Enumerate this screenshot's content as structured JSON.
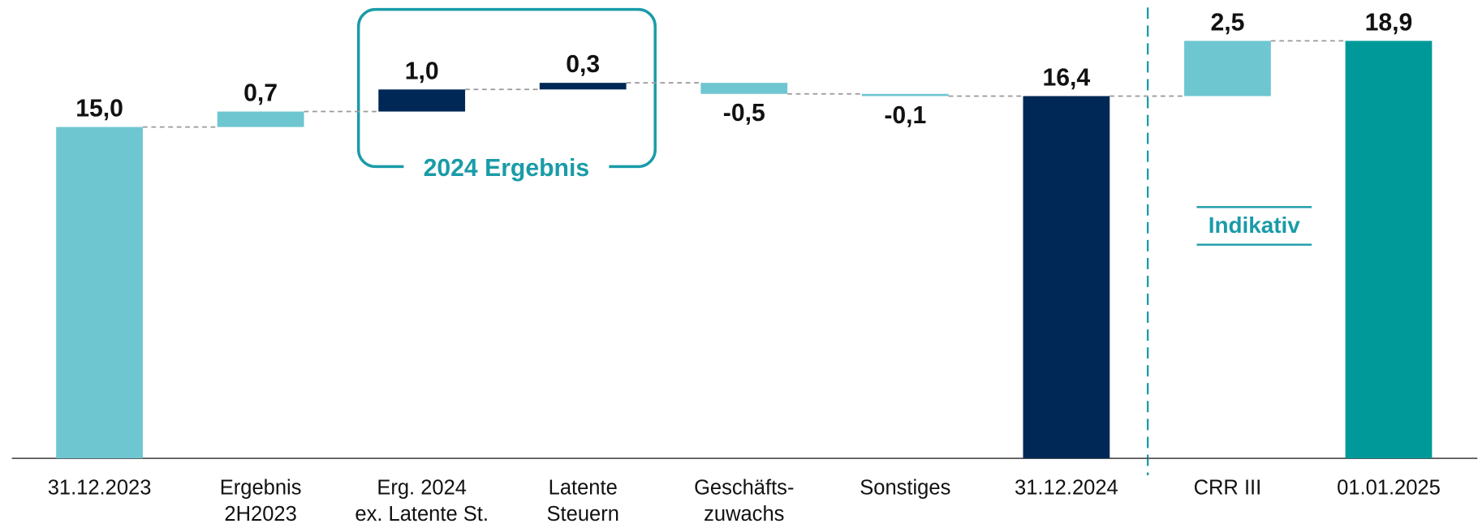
{
  "chart_data": {
    "type": "waterfall",
    "categories": [
      "31.12.2023",
      "Ergebnis\n2H2023",
      "Erg. 2024\nex. Latente St.",
      "Latente\nSteuern",
      "Geschäfts-\nzuwachs",
      "Sonstiges",
      "31.12.2024",
      "CRR III",
      "01.01.2025"
    ],
    "values": [
      15.0,
      0.7,
      1.0,
      0.3,
      -0.5,
      -0.1,
      16.4,
      2.5,
      18.9
    ],
    "value_labels": [
      "15,0",
      "0,7",
      "1,0",
      "0,3",
      "-0,5",
      "-0,1",
      "16,4",
      "2,5",
      "18,9"
    ],
    "measure": [
      "absolute",
      "relative",
      "relative",
      "relative",
      "relative",
      "relative",
      "absolute",
      "relative",
      "absolute"
    ],
    "colors": [
      "#6ec6d0",
      "#6ec6d0",
      "#002856",
      "#002856",
      "#6ec6d0",
      "#6ec6d0",
      "#002856",
      "#6ec6d0",
      "#009999"
    ],
    "annotations": [
      "2024 Ergebnis",
      "Indikativ"
    ]
  }
}
